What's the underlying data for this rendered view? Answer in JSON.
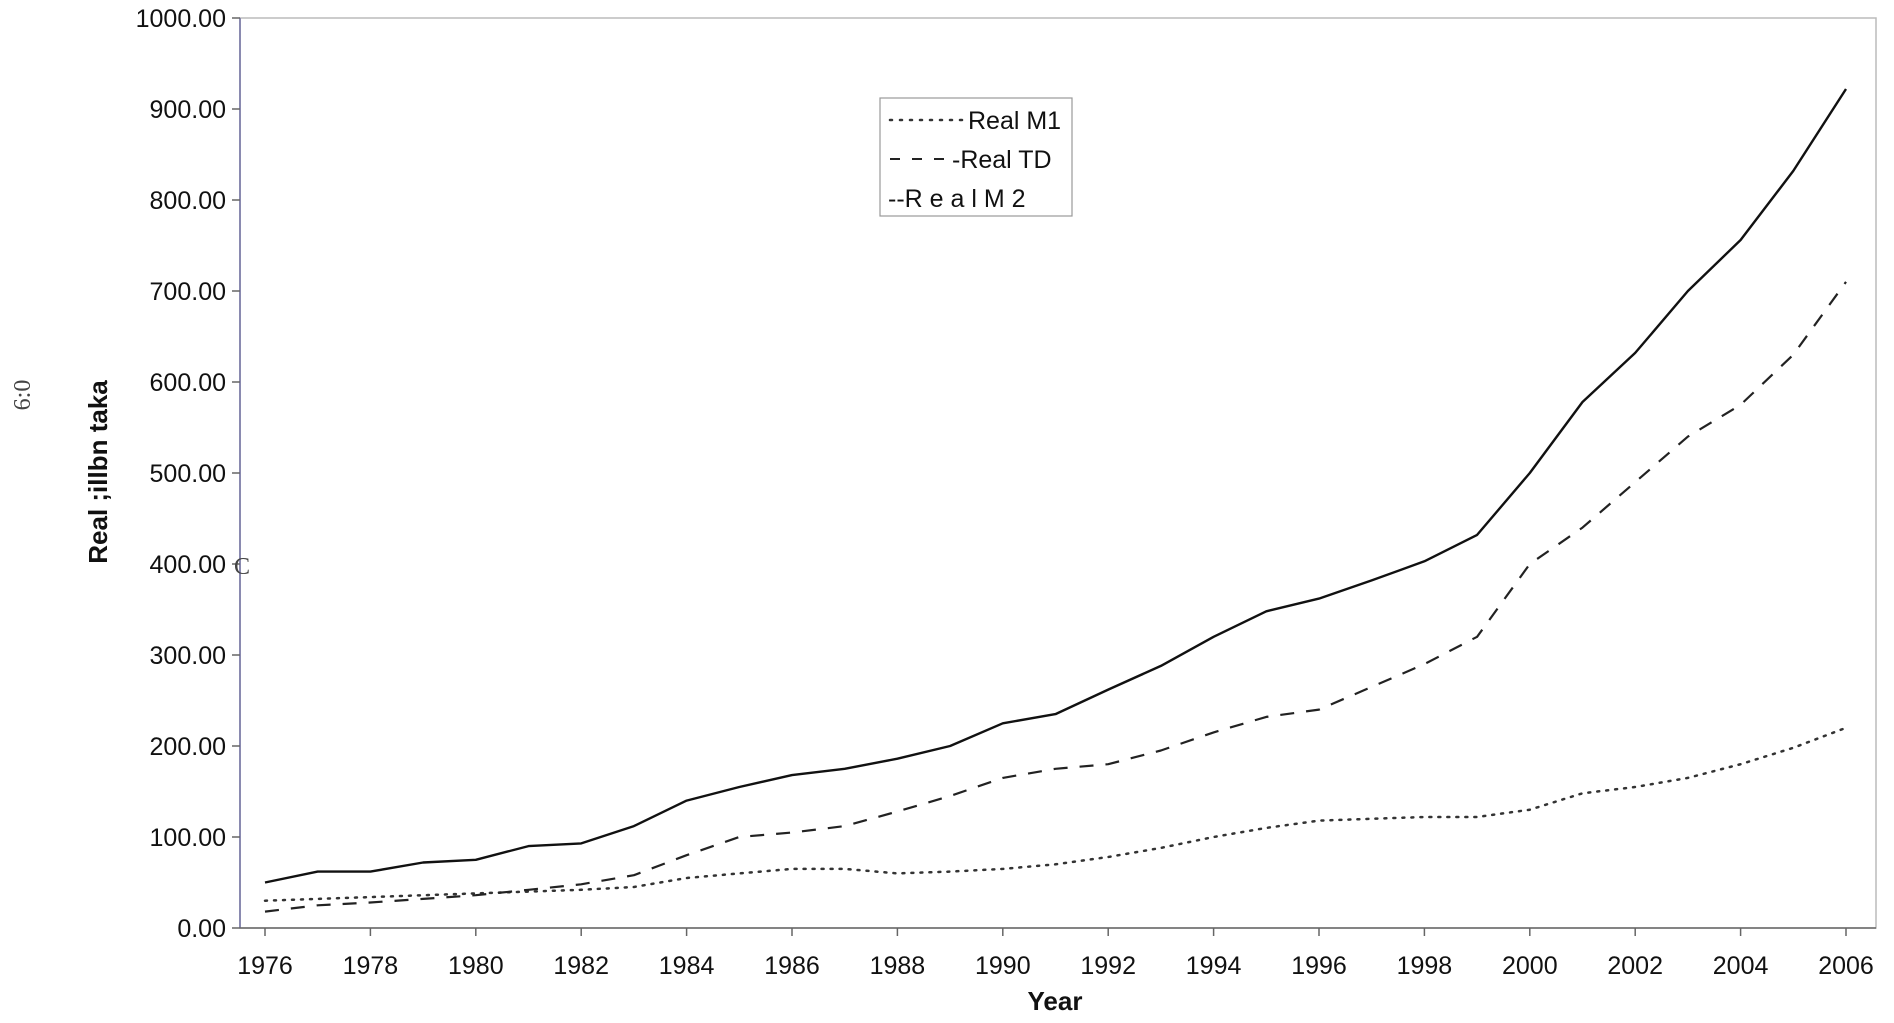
{
  "chart_data": {
    "type": "line",
    "title": "",
    "xlabel": "Year",
    "ylabel": "Real ;illbn taka",
    "x": [
      1976,
      1977,
      1978,
      1979,
      1980,
      1981,
      1982,
      1983,
      1984,
      1985,
      1986,
      1987,
      1988,
      1989,
      1990,
      1991,
      1992,
      1993,
      1994,
      1995,
      1996,
      1997,
      1998,
      1999,
      2000,
      2001,
      2002,
      2003,
      2004,
      2005,
      2006
    ],
    "x_tick_labels": [
      "1976",
      "1978",
      "1980",
      "1982",
      "1984",
      "1986",
      "1988",
      "1990",
      "1992",
      "1994",
      "1996",
      "1998",
      "2000",
      "2002",
      "2004",
      "2006"
    ],
    "y_tick_labels": [
      "0.00",
      "100.00",
      "200.00",
      "300.00",
      "400.00",
      "500.00",
      "600.00",
      "700.00",
      "800.00",
      "900.00",
      "1000.00"
    ],
    "ylim": [
      0,
      1000
    ],
    "grid": false,
    "legend_position": "top-center",
    "series": [
      {
        "name": "Real M1",
        "style": "dotted",
        "color": "#333333",
        "values": [
          30,
          32,
          34,
          36,
          38,
          40,
          42,
          45,
          55,
          60,
          65,
          65,
          60,
          62,
          65,
          70,
          78,
          88,
          100,
          110,
          118,
          120,
          122,
          122,
          130,
          148,
          155,
          165,
          180,
          198,
          220
        ]
      },
      {
        "name": "Real TD",
        "style": "dashed",
        "color": "#222222",
        "values": [
          18,
          25,
          28,
          32,
          36,
          42,
          48,
          58,
          80,
          100,
          105,
          112,
          128,
          145,
          165,
          175,
          180,
          195,
          215,
          232,
          240,
          265,
          290,
          320,
          400,
          440,
          490,
          540,
          575,
          630,
          710
        ]
      },
      {
        "name": "Real M2",
        "style": "solid",
        "color": "#111111",
        "values": [
          50,
          62,
          62,
          72,
          75,
          90,
          93,
          112,
          140,
          155,
          168,
          175,
          186,
          200,
          225,
          235,
          262,
          288,
          320,
          348,
          362,
          382,
          403,
          432,
          500,
          578,
          632,
          700,
          756,
          832,
          922
        ]
      }
    ],
    "legend_labels": [
      "Real M1",
      "-Real TD",
      "--R e a l M 2"
    ]
  },
  "margin": {
    "left_mark": "6:0",
    "axis_mark": "C"
  }
}
